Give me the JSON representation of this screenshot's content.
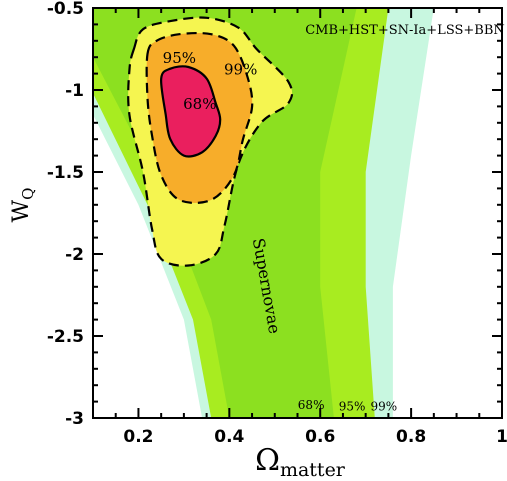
{
  "chart_data": {
    "type": "contour",
    "title": "",
    "legend_text": "CMB+HST+SN-Ia+LSS+BBN",
    "xlabel": {
      "main": "Ω",
      "sub": "matter"
    },
    "ylabel": {
      "main": "W",
      "sub": "Q"
    },
    "xlim": [
      0.1,
      1.0
    ],
    "ylim": [
      -3.0,
      -0.5
    ],
    "x_ticks": [
      {
        "value": 0.2,
        "label": "0.2"
      },
      {
        "value": 0.4,
        "label": "0.4"
      },
      {
        "value": 0.6,
        "label": "0.6"
      },
      {
        "value": 0.8,
        "label": "0.8"
      },
      {
        "value": 1.0,
        "label": "1"
      }
    ],
    "y_ticks": [
      {
        "value": -0.5,
        "label": "-0.5"
      },
      {
        "value": -1.0,
        "label": "-1"
      },
      {
        "value": -1.5,
        "label": "-1.5"
      },
      {
        "value": -2.0,
        "label": "-2"
      },
      {
        "value": -2.5,
        "label": "-2.5"
      },
      {
        "value": -3.0,
        "label": "-3"
      }
    ],
    "supernovae": {
      "label": "Supernovae",
      "label_position": {
        "x": 0.47,
        "y": -2.2
      },
      "colors": {
        "99": "#c8f7e0",
        "95": "#a8ec20",
        "68": "#8ce020"
      },
      "band_labels": [
        {
          "text": "68%",
          "x": 0.58,
          "y": -2.92
        },
        {
          "text": "95%",
          "x": 0.67,
          "y": -2.93
        },
        {
          "text": "99%",
          "x": 0.74,
          "y": -2.93
        }
      ],
      "bands": [
        {
          "level": "99",
          "polygon": [
            [
              0.1,
              -0.5
            ],
            [
              0.85,
              -0.5
            ],
            [
              0.8,
              -1.4
            ],
            [
              0.76,
              -2.2
            ],
            [
              0.76,
              -3.0
            ],
            [
              0.34,
              -3.0
            ],
            [
              0.3,
              -2.4
            ],
            [
              0.2,
              -1.7
            ],
            [
              0.1,
              -1.15
            ]
          ]
        },
        {
          "level": "95",
          "polygon": [
            [
              0.1,
              -0.5
            ],
            [
              0.75,
              -0.5
            ],
            [
              0.7,
              -1.5
            ],
            [
              0.7,
              -2.2
            ],
            [
              0.72,
              -3.0
            ],
            [
              0.36,
              -3.0
            ],
            [
              0.32,
              -2.4
            ],
            [
              0.22,
              -1.7
            ],
            [
              0.1,
              -1.02
            ]
          ]
        },
        {
          "level": "68",
          "polygon": [
            [
              0.1,
              -0.5
            ],
            [
              0.68,
              -0.5
            ],
            [
              0.6,
              -1.5
            ],
            [
              0.6,
              -2.2
            ],
            [
              0.63,
              -3.0
            ],
            [
              0.4,
              -3.0
            ],
            [
              0.36,
              -2.4
            ],
            [
              0.25,
              -1.6
            ],
            [
              0.1,
              -0.8
            ]
          ]
        }
      ]
    },
    "combined": {
      "colors": {
        "99": "#f5f550",
        "95": "#f7ad2a",
        "68": "#ea1f5e"
      },
      "contour_labels": [
        {
          "text": "99%",
          "x": 0.425,
          "y": -0.87
        },
        {
          "text": "95%",
          "x": 0.29,
          "y": -0.8
        },
        {
          "text": "68%",
          "x": 0.335,
          "y": -1.08
        }
      ],
      "contours": [
        {
          "level": "99",
          "polygon": [
            [
              0.19,
              -0.75
            ],
            [
              0.21,
              -0.63
            ],
            [
              0.27,
              -0.58
            ],
            [
              0.35,
              -0.56
            ],
            [
              0.42,
              -0.62
            ],
            [
              0.46,
              -0.75
            ],
            [
              0.53,
              -0.95
            ],
            [
              0.53,
              -1.08
            ],
            [
              0.47,
              -1.2
            ],
            [
              0.42,
              -1.45
            ],
            [
              0.39,
              -1.82
            ],
            [
              0.37,
              -2.0
            ],
            [
              0.31,
              -2.07
            ],
            [
              0.25,
              -2.03
            ],
            [
              0.23,
              -1.85
            ],
            [
              0.21,
              -1.5
            ],
            [
              0.18,
              -1.15
            ],
            [
              0.18,
              -0.88
            ]
          ]
        },
        {
          "level": "95",
          "polygon": [
            [
              0.22,
              -0.78
            ],
            [
              0.24,
              -0.7
            ],
            [
              0.29,
              -0.66
            ],
            [
              0.36,
              -0.66
            ],
            [
              0.41,
              -0.73
            ],
            [
              0.44,
              -0.92
            ],
            [
              0.45,
              -1.1
            ],
            [
              0.43,
              -1.3
            ],
            [
              0.41,
              -1.52
            ],
            [
              0.36,
              -1.67
            ],
            [
              0.29,
              -1.67
            ],
            [
              0.25,
              -1.52
            ],
            [
              0.23,
              -1.28
            ],
            [
              0.22,
              -1.05
            ]
          ]
        },
        {
          "level": "68",
          "polygon": [
            [
              0.25,
              -0.93
            ],
            [
              0.27,
              -0.87
            ],
            [
              0.31,
              -0.86
            ],
            [
              0.35,
              -0.93
            ],
            [
              0.37,
              -1.08
            ],
            [
              0.38,
              -1.18
            ],
            [
              0.37,
              -1.28
            ],
            [
              0.34,
              -1.38
            ],
            [
              0.3,
              -1.4
            ],
            [
              0.27,
              -1.3
            ],
            [
              0.26,
              -1.15
            ]
          ]
        }
      ]
    }
  }
}
